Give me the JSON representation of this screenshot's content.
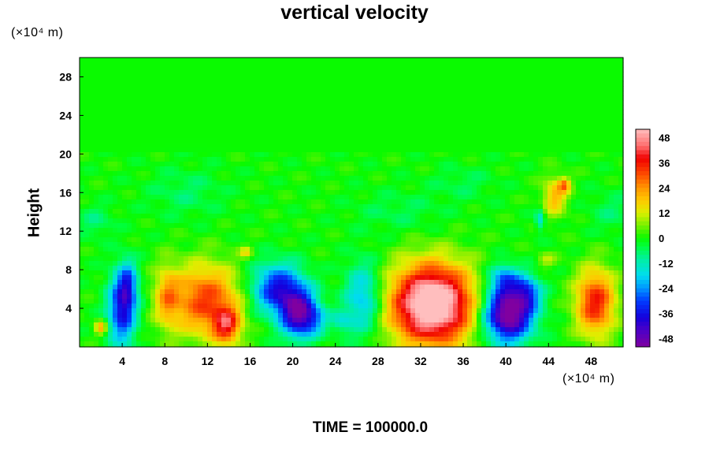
{
  "chart_data": {
    "type": "heatmap",
    "title": "vertical velocity",
    "ylabel": "Height",
    "xlabel": "",
    "x_unit": "(×10⁴ m)",
    "y_unit": "(×10⁴ m)",
    "footer": "TIME = 100000.0",
    "xlim": [
      0,
      51
    ],
    "ylim": [
      0,
      30
    ],
    "x_ticks": [
      "4",
      "8",
      "12",
      "16",
      "20",
      "24",
      "28",
      "32",
      "36",
      "40",
      "44",
      "48"
    ],
    "y_ticks": [
      "4",
      "8",
      "12",
      "16",
      "20",
      "24",
      "28"
    ],
    "colorbar": {
      "range": [
        -52,
        52
      ],
      "ticks": [
        "48",
        "36",
        "24",
        "12",
        "0",
        "-12",
        "-24",
        "-36",
        "-48"
      ]
    },
    "features": [
      {
        "x": 4.0,
        "y": 4.0,
        "sx": 0.9,
        "sy": 2.6,
        "value": -38
      },
      {
        "x": 4.6,
        "y": 6.5,
        "sx": 0.6,
        "sy": 1.6,
        "value": -20
      },
      {
        "x": 2.0,
        "y": 2.0,
        "sx": 0.4,
        "sy": 0.5,
        "value": 22
      },
      {
        "x": 8.2,
        "y": 5.2,
        "sx": 0.8,
        "sy": 2.2,
        "value": 18
      },
      {
        "x": 11.8,
        "y": 4.8,
        "sx": 2.3,
        "sy": 2.6,
        "value": 32
      },
      {
        "x": 13.8,
        "y": 2.2,
        "sx": 0.9,
        "sy": 1.3,
        "value": 30
      },
      {
        "x": 15.6,
        "y": 9.8,
        "sx": 0.4,
        "sy": 0.4,
        "value": 14
      },
      {
        "x": 18.6,
        "y": 6.0,
        "sx": 1.7,
        "sy": 1.8,
        "value": -36
      },
      {
        "x": 20.6,
        "y": 3.4,
        "sx": 1.2,
        "sy": 1.7,
        "value": -46
      },
      {
        "x": 22.2,
        "y": 2.8,
        "sx": 0.8,
        "sy": 1.0,
        "value": -12
      },
      {
        "x": 26.6,
        "y": 5.0,
        "sx": 1.2,
        "sy": 2.6,
        "value": -22
      },
      {
        "x": 24.6,
        "y": 2.6,
        "sx": 0.7,
        "sy": 0.8,
        "value": -12
      },
      {
        "x": 33.1,
        "y": 4.4,
        "sx": 2.7,
        "sy": 2.9,
        "value": 64
      },
      {
        "x": 40.2,
        "y": 3.4,
        "sx": 1.6,
        "sy": 2.0,
        "value": -58
      },
      {
        "x": 39.8,
        "y": 7.0,
        "sx": 1.0,
        "sy": 1.1,
        "value": -22
      },
      {
        "x": 42.0,
        "y": 5.6,
        "sx": 0.9,
        "sy": 1.2,
        "value": -24
      },
      {
        "x": 48.4,
        "y": 4.6,
        "sx": 1.3,
        "sy": 2.4,
        "value": 36
      },
      {
        "x": 44.6,
        "y": 15.6,
        "sx": 0.8,
        "sy": 1.4,
        "value": 20
      },
      {
        "x": 45.5,
        "y": 16.8,
        "sx": 0.4,
        "sy": 0.5,
        "value": 22
      },
      {
        "x": 43.2,
        "y": 13.2,
        "sx": 0.3,
        "sy": 0.8,
        "value": -16
      },
      {
        "x": 43.8,
        "y": 9.0,
        "sx": 0.6,
        "sy": 0.5,
        "value": 10
      },
      {
        "x": 10.0,
        "y": 16.0,
        "sx": 2.5,
        "sy": 1.8,
        "value": -6
      },
      {
        "x": 30.0,
        "y": 14.0,
        "sx": 3.0,
        "sy": 1.5,
        "value": -5
      },
      {
        "x": 36.0,
        "y": 17.0,
        "sx": 2.0,
        "sy": 1.2,
        "value": -5
      },
      {
        "x": 50.0,
        "y": 14.0,
        "sx": 1.5,
        "sy": 1.5,
        "value": -6
      },
      {
        "x": 1.5,
        "y": 13.0,
        "sx": 1.2,
        "sy": 1.2,
        "value": -7
      }
    ]
  }
}
